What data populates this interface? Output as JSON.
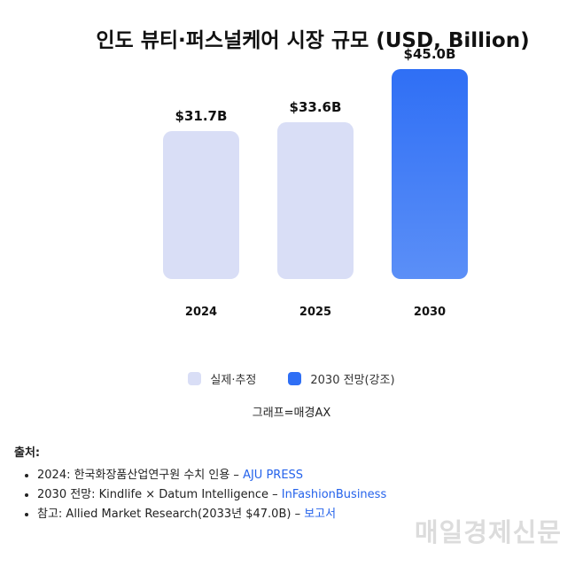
{
  "chart_data": {
    "type": "bar",
    "title": "인도 뷰티·퍼스널케어 시장 규모 (USD, Billion)",
    "categories": [
      "2024",
      "2025",
      "2030"
    ],
    "values": [
      31.7,
      33.6,
      45.0
    ],
    "value_labels": [
      "$31.7B",
      "$33.6B",
      "$45.0B"
    ],
    "highlight_index": 2,
    "grid": false,
    "legend": [
      "실제·추정",
      "2030 전망(강조)"
    ],
    "legend_position": "bottom",
    "colors": {
      "base": "#d9def6",
      "highlight_top": "#2f6ff5",
      "highlight_bottom": "#5b8ff7"
    }
  },
  "credit": "그래프=매경AX",
  "sources": {
    "heading": "출처:",
    "items": [
      {
        "text": "2024: 한국화장품산업연구원 수치 인용 – ",
        "link": "AJU PRESS"
      },
      {
        "text": "2030 전망: Kindlife × Datum Intelligence – ",
        "link": "InFashionBusiness"
      },
      {
        "text": "참고: Allied Market Research(2033년 $47.0B) – ",
        "link": "보고서"
      }
    ]
  },
  "watermark": "매일경제신문"
}
